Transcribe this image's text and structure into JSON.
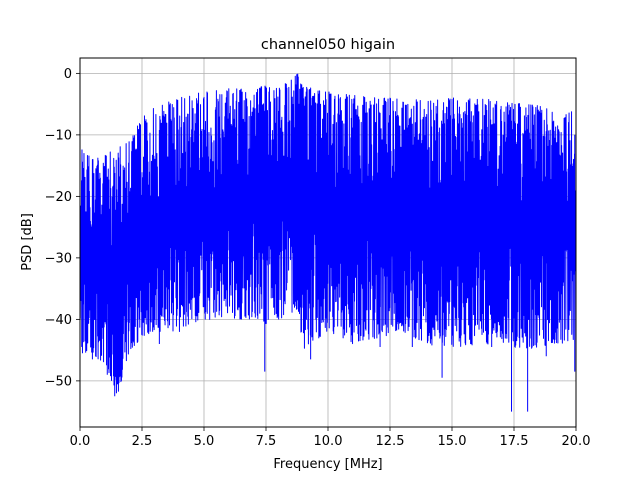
{
  "chart_data": {
    "type": "line",
    "title": "channel050 higain",
    "xlabel": "Frequency [MHz]",
    "ylabel": "PSD [dB]",
    "xlim": [
      0,
      20
    ],
    "ylim": [
      -57.5,
      2.5
    ],
    "xticks": [
      0,
      2.5,
      5,
      7.5,
      10,
      12.5,
      15,
      17.5,
      20
    ],
    "xtick_labels": [
      "0.0",
      "2.5",
      "5.0",
      "7.5",
      "10.0",
      "12.5",
      "15.0",
      "17.5",
      "20.0"
    ],
    "yticks": [
      0,
      -10,
      -20,
      -30,
      -40,
      -50
    ],
    "ytick_labels": [
      "0",
      "−10",
      "−20",
      "−30",
      "−40",
      "−50"
    ],
    "grid": true,
    "line_color": "#0000ff",
    "series": [
      {
        "x": [
          0,
          0.5,
          1,
          1.5,
          2,
          2.5,
          3,
          4,
          5,
          6,
          7,
          7.5,
          8,
          8.8,
          9,
          10,
          11,
          12,
          13,
          14,
          15,
          16,
          17,
          18,
          19,
          20
        ],
        "upper": [
          -12,
          -14,
          -13,
          -12,
          -11,
          -7,
          -5.5,
          -4,
          -3,
          -2.5,
          -2.5,
          -2,
          -2.5,
          0,
          -2,
          -3,
          -3.5,
          -4,
          -4,
          -4.5,
          -4,
          -4,
          -4.5,
          -5,
          -5.5,
          -6
        ],
        "lower": [
          -45,
          -46,
          -47,
          -52.5,
          -45,
          -43,
          -42,
          -42,
          -40,
          -40,
          -40,
          -41,
          -40,
          -39,
          -45,
          -42,
          -44,
          -43,
          -42,
          -44,
          -45,
          -44,
          -44,
          -45,
          -44,
          -44
        ],
        "dips": [
          {
            "x": 0.1,
            "y": -45.5
          },
          {
            "x": 0.5,
            "y": -46.5
          },
          {
            "x": 1.1,
            "y": -49
          },
          {
            "x": 1.4,
            "y": -52.5
          },
          {
            "x": 1.55,
            "y": -49
          },
          {
            "x": 3.2,
            "y": -44
          },
          {
            "x": 7.45,
            "y": -48.5
          },
          {
            "x": 9.3,
            "y": -46.5
          },
          {
            "x": 12.1,
            "y": -44.5
          },
          {
            "x": 13.4,
            "y": -44.5
          },
          {
            "x": 14.6,
            "y": -49.5
          },
          {
            "x": 16.6,
            "y": -44.5
          },
          {
            "x": 17.4,
            "y": -55
          },
          {
            "x": 18.05,
            "y": -55
          },
          {
            "x": 18.8,
            "y": -46
          },
          {
            "x": 19.95,
            "y": -48.5
          }
        ]
      }
    ]
  }
}
